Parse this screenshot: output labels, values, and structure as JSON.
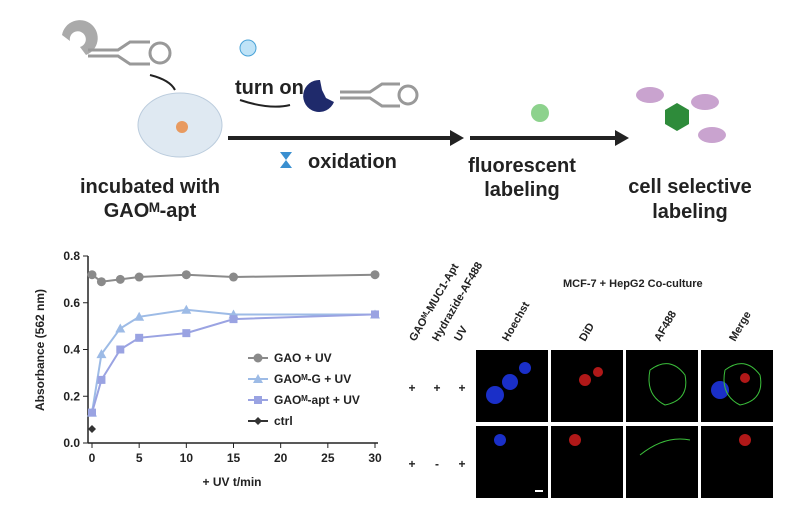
{
  "chart_data": {
    "type": "line",
    "ylabel": "Absorbance (562 nm)",
    "xlabel": "+ UV  t/min",
    "x": [
      0,
      1,
      3,
      5,
      10,
      15,
      30
    ],
    "series": [
      {
        "name": "GAO + UV",
        "color": "#8a8a8a",
        "marker": "circle",
        "values": [
          0.72,
          0.69,
          0.7,
          0.71,
          0.72,
          0.71,
          0.72
        ]
      },
      {
        "name": "GAOᴹ-G + UV",
        "color": "#9dbbe6",
        "marker": "triangle",
        "values": [
          0.13,
          0.38,
          0.49,
          0.54,
          0.57,
          0.55,
          0.55
        ]
      },
      {
        "name": "GAOᴹ-apt + UV",
        "color": "#9aa3e2",
        "marker": "square",
        "values": [
          0.13,
          0.27,
          0.4,
          0.45,
          0.47,
          0.53,
          0.55
        ]
      },
      {
        "name": "ctrl",
        "color": "#333333",
        "marker": "diamond",
        "values": [
          0.06,
          null,
          null,
          null,
          null,
          null,
          null
        ]
      }
    ],
    "xlim": [
      0,
      30
    ],
    "xticks": [
      0,
      5,
      10,
      15,
      20,
      25,
      30
    ],
    "ylim": [
      0,
      0.8
    ],
    "yticks": [
      {
        "value": 0,
        "label": "0.0"
      },
      0.2,
      0.4,
      0.6,
      0.8
    ]
  },
  "schematic": {
    "step1": [
      "incubated with",
      "GAOᴹ-apt"
    ],
    "turn_on": "turn on",
    "oxidation": "oxidation",
    "step2": [
      "fluorescent",
      "labeling"
    ],
    "step3": [
      "cell selective",
      "labeling"
    ]
  },
  "microscopy": {
    "title": "MCF-7 + HepG2  Co-culture",
    "conditions": [
      "GAOᴹ-MUC1-Apt",
      "Hydrazide-AF488",
      "UV"
    ],
    "channels": [
      "Hoechst",
      "DiD",
      "AF488",
      "Merge"
    ],
    "rows": [
      [
        "+",
        "+",
        "+"
      ],
      [
        "+",
        "-",
        "+"
      ]
    ]
  }
}
